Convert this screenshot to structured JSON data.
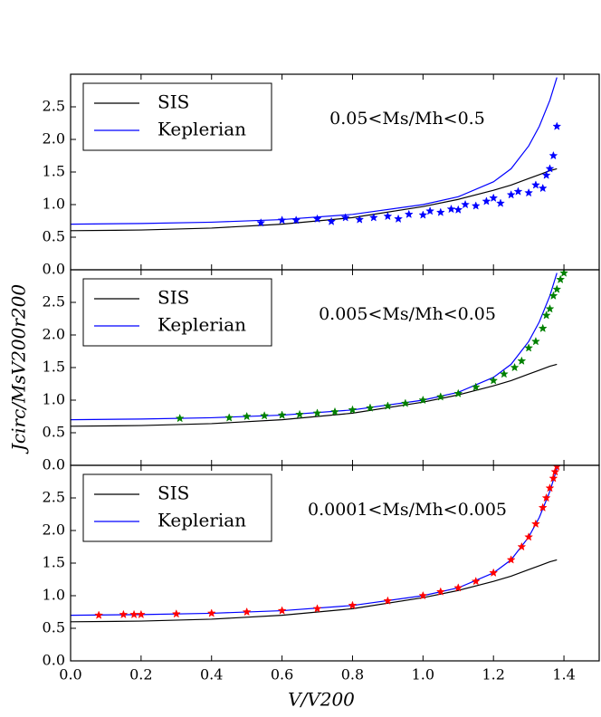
{
  "chart_data": [
    {
      "type": "line",
      "annotation": "0.05<Ms/Mh<0.5",
      "xlim": [
        0,
        1.5
      ],
      "ylim": [
        0,
        3
      ],
      "yticks": [
        {
          "value": 0,
          "label": "0.0"
        },
        0.5,
        {
          "value": 1,
          "label": "1.0"
        },
        1.5,
        {
          "value": 2,
          "label": "2.0"
        },
        2.5
      ],
      "series": [
        {
          "name": "SIS",
          "color": "#000000",
          "x": [
            0,
            0.2,
            0.4,
            0.6,
            0.8,
            1.0,
            1.1,
            1.2,
            1.25,
            1.3,
            1.33,
            1.36,
            1.38
          ],
          "values": [
            0.6,
            0.61,
            0.64,
            0.7,
            0.8,
            0.97,
            1.08,
            1.22,
            1.3,
            1.4,
            1.46,
            1.52,
            1.55
          ]
        },
        {
          "name": "Keplerian",
          "color": "#0000ff",
          "x": [
            0,
            0.2,
            0.4,
            0.6,
            0.8,
            1.0,
            1.1,
            1.2,
            1.25,
            1.3,
            1.33,
            1.36,
            1.38
          ],
          "values": [
            0.7,
            0.71,
            0.73,
            0.77,
            0.85,
            1.0,
            1.12,
            1.35,
            1.55,
            1.9,
            2.2,
            2.6,
            2.95
          ]
        },
        {
          "marker": "star",
          "color": "#0000ff",
          "x": [
            0.54,
            0.6,
            0.64,
            0.7,
            0.74,
            0.78,
            0.82,
            0.86,
            0.9,
            0.93,
            0.96,
            1.0,
            1.02,
            1.05,
            1.08,
            1.1,
            1.12,
            1.15,
            1.18,
            1.2,
            1.22,
            1.25,
            1.27,
            1.3,
            1.32,
            1.34,
            1.35,
            1.36,
            1.37,
            1.38
          ],
          "values": [
            0.72,
            0.76,
            0.76,
            0.78,
            0.74,
            0.8,
            0.77,
            0.8,
            0.82,
            0.78,
            0.85,
            0.84,
            0.9,
            0.88,
            0.93,
            0.92,
            1.0,
            0.98,
            1.05,
            1.1,
            1.02,
            1.15,
            1.2,
            1.18,
            1.3,
            1.25,
            1.45,
            1.55,
            1.75,
            2.2
          ]
        }
      ]
    },
    {
      "type": "line",
      "annotation": "0.005<Ms/Mh<0.05",
      "ylabel": "Jcirc/MsV200r200",
      "xlim": [
        0,
        1.5
      ],
      "ylim": [
        0,
        3
      ],
      "yticks": [
        {
          "value": 0,
          "label": "0.0"
        },
        0.5,
        {
          "value": 1,
          "label": "1.0"
        },
        1.5,
        {
          "value": 2,
          "label": "2.0"
        },
        2.5
      ],
      "series": [
        {
          "name": "SIS",
          "color": "#000000",
          "x": [
            0,
            0.2,
            0.4,
            0.6,
            0.8,
            1.0,
            1.1,
            1.2,
            1.25,
            1.3,
            1.33,
            1.36,
            1.38
          ],
          "values": [
            0.6,
            0.61,
            0.64,
            0.7,
            0.8,
            0.97,
            1.08,
            1.22,
            1.3,
            1.4,
            1.46,
            1.52,
            1.55
          ]
        },
        {
          "name": "Keplerian",
          "color": "#0000ff",
          "x": [
            0,
            0.2,
            0.4,
            0.6,
            0.8,
            1.0,
            1.1,
            1.2,
            1.25,
            1.3,
            1.33,
            1.36,
            1.38
          ],
          "values": [
            0.7,
            0.71,
            0.73,
            0.77,
            0.85,
            1.0,
            1.12,
            1.35,
            1.55,
            1.9,
            2.2,
            2.6,
            2.95
          ]
        },
        {
          "marker": "star",
          "color": "#008000",
          "x": [
            0.31,
            0.45,
            0.5,
            0.55,
            0.6,
            0.65,
            0.7,
            0.75,
            0.8,
            0.85,
            0.9,
            0.95,
            1.0,
            1.05,
            1.1,
            1.15,
            1.2,
            1.23,
            1.26,
            1.28,
            1.3,
            1.32,
            1.34,
            1.35,
            1.36,
            1.37,
            1.38,
            1.39,
            1.4
          ],
          "values": [
            0.72,
            0.73,
            0.75,
            0.76,
            0.77,
            0.78,
            0.8,
            0.82,
            0.85,
            0.88,
            0.91,
            0.95,
            1.0,
            1.05,
            1.1,
            1.2,
            1.3,
            1.4,
            1.5,
            1.6,
            1.8,
            1.9,
            2.1,
            2.3,
            2.4,
            2.6,
            2.7,
            2.85,
            2.95
          ]
        }
      ]
    },
    {
      "type": "line",
      "annotation": "0.0001<Ms/Mh<0.005",
      "xlabel": "V/V200",
      "xlim": [
        0,
        1.5
      ],
      "ylim": [
        0,
        3
      ],
      "xticks": [
        {
          "value": 0,
          "label": "0.0"
        },
        0.2,
        0.4,
        0.6,
        0.8,
        {
          "value": 1,
          "label": "1.0"
        },
        1.2,
        1.4
      ],
      "yticks": [
        {
          "value": 0,
          "label": "0.0"
        },
        0.5,
        {
          "value": 1,
          "label": "1.0"
        },
        1.5,
        {
          "value": 2,
          "label": "2.0"
        },
        2.5
      ],
      "series": [
        {
          "name": "SIS",
          "color": "#000000",
          "x": [
            0,
            0.2,
            0.4,
            0.6,
            0.8,
            1.0,
            1.1,
            1.2,
            1.25,
            1.3,
            1.33,
            1.36,
            1.38
          ],
          "values": [
            0.6,
            0.61,
            0.64,
            0.7,
            0.8,
            0.97,
            1.08,
            1.22,
            1.3,
            1.4,
            1.46,
            1.52,
            1.55
          ]
        },
        {
          "name": "Keplerian",
          "color": "#0000ff",
          "x": [
            0,
            0.2,
            0.4,
            0.6,
            0.8,
            1.0,
            1.1,
            1.2,
            1.25,
            1.3,
            1.33,
            1.36,
            1.38
          ],
          "values": [
            0.7,
            0.71,
            0.73,
            0.77,
            0.85,
            1.0,
            1.12,
            1.35,
            1.55,
            1.9,
            2.2,
            2.6,
            2.95
          ]
        },
        {
          "marker": "star",
          "color": "#ff0000",
          "x": [
            0.08,
            0.15,
            0.18,
            0.2,
            0.3,
            0.4,
            0.5,
            0.6,
            0.7,
            0.8,
            0.9,
            1.0,
            1.05,
            1.1,
            1.15,
            1.2,
            1.25,
            1.28,
            1.3,
            1.32,
            1.34,
            1.35,
            1.36,
            1.37,
            1.375,
            1.38
          ],
          "values": [
            0.7,
            0.71,
            0.71,
            0.71,
            0.72,
            0.73,
            0.75,
            0.77,
            0.8,
            0.85,
            0.92,
            1.0,
            1.06,
            1.12,
            1.22,
            1.35,
            1.55,
            1.75,
            1.9,
            2.1,
            2.35,
            2.5,
            2.65,
            2.8,
            2.9,
            2.98
          ]
        }
      ]
    }
  ]
}
